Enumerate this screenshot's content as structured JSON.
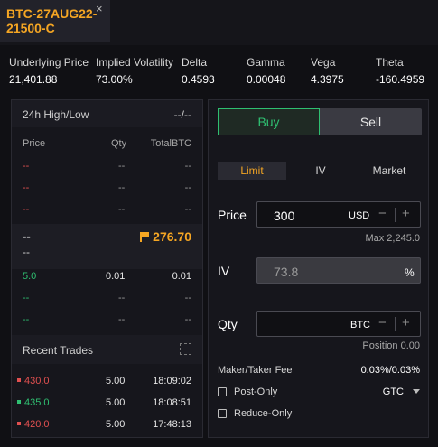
{
  "tab": {
    "title": "BTC-27AUG22-21500-C",
    "close": "×"
  },
  "stats": [
    {
      "label": "Underlying Price",
      "value": "21,401.88"
    },
    {
      "label": "Implied Volatility",
      "value": "73.00%"
    },
    {
      "label": "Delta",
      "value": "0.4593"
    },
    {
      "label": "Gamma",
      "value": "0.00048"
    },
    {
      "label": "Vega",
      "value": "4.3975"
    },
    {
      "label": "Theta",
      "value": "-160.4959"
    }
  ],
  "orderbook": {
    "high_low_label": "24h High/Low",
    "high_low_value": "--/--",
    "headers": {
      "price": "Price",
      "qty": "Qty",
      "total": "TotalBTC"
    },
    "asks": [
      {
        "price": "--",
        "qty": "--",
        "total": "--"
      },
      {
        "price": "--",
        "qty": "--",
        "total": "--"
      },
      {
        "price": "--",
        "qty": "--",
        "total": "--"
      }
    ],
    "mid": {
      "top": "--",
      "bottom": "--",
      "mark_price": "276.70"
    },
    "bids": [
      {
        "price": "5.0",
        "qty": "0.01",
        "total": "0.01"
      },
      {
        "price": "--",
        "qty": "--",
        "total": "--"
      },
      {
        "price": "--",
        "qty": "--",
        "total": "--"
      }
    ]
  },
  "recent_trades": {
    "label": "Recent Trades",
    "rows": [
      {
        "price": "430.0",
        "qty": "5.00",
        "time": "18:09:02",
        "side": "sell"
      },
      {
        "price": "435.0",
        "qty": "5.00",
        "time": "18:08:51",
        "side": "buy"
      },
      {
        "price": "420.0",
        "qty": "5.00",
        "time": "17:48:13",
        "side": "sell"
      }
    ]
  },
  "order_form": {
    "buy_label": "Buy",
    "sell_label": "Sell",
    "order_types": [
      "Limit",
      "IV",
      "Market"
    ],
    "price_label": "Price",
    "price_value": "300",
    "price_unit": "USD",
    "max_text": "Max 2,245.0",
    "iv_label": "IV",
    "iv_value": "73.8",
    "iv_unit": "%",
    "qty_label": "Qty",
    "qty_value": "",
    "qty_unit": "BTC",
    "position_text": "Position 0.00",
    "fee_label": "Maker/Taker Fee",
    "fee_value": "0.03%/0.03%",
    "post_only_label": "Post-Only",
    "reduce_only_label": "Reduce-Only",
    "tif_value": "GTC",
    "minus": "−",
    "plus": "+"
  },
  "colors": {
    "accent": "#f5a623",
    "bid": "#2fbf71",
    "ask": "#e05050"
  },
  "icons": [
    "close-icon",
    "flag-icon",
    "expand-icon",
    "chevron-down-icon"
  ]
}
